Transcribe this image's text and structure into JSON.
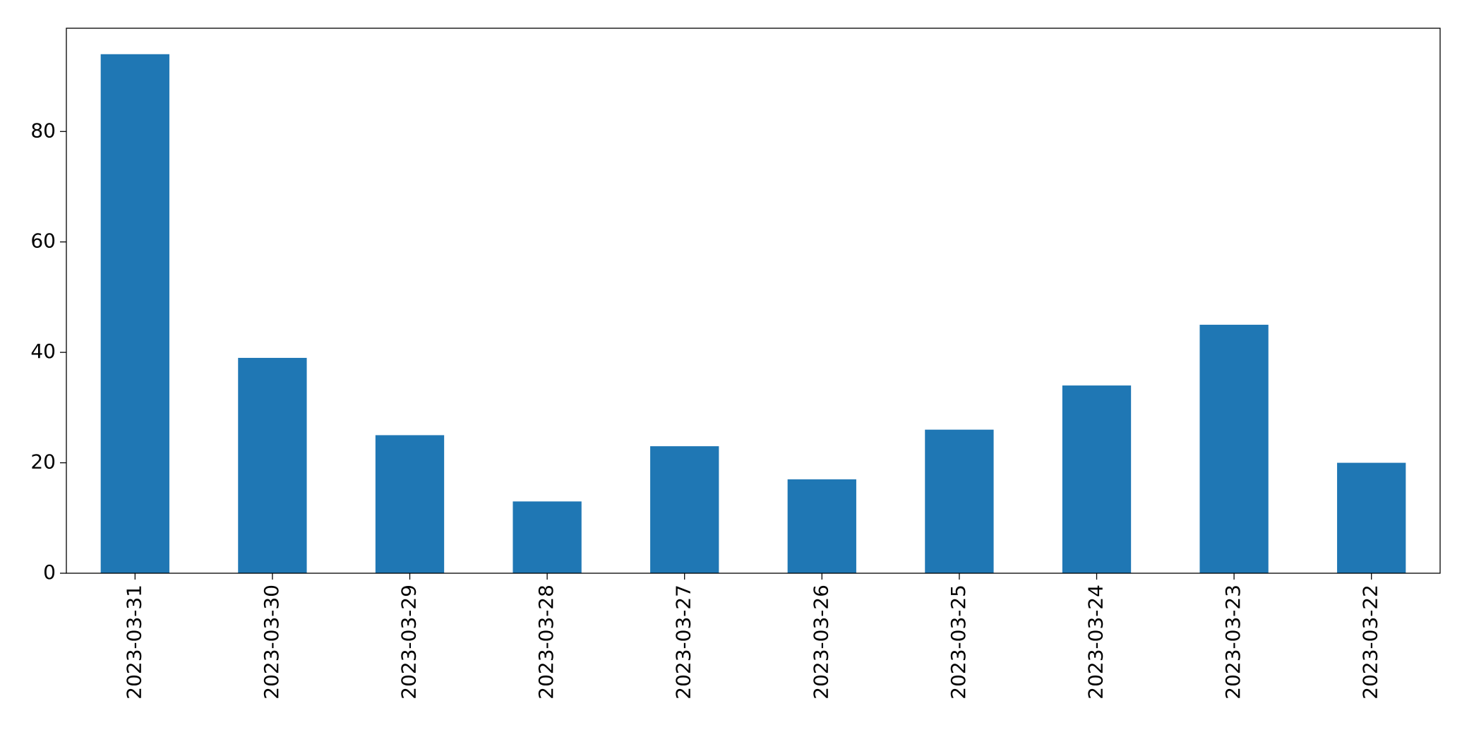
{
  "chart_data": {
    "type": "bar",
    "categories": [
      "2023-03-31",
      "2023-03-30",
      "2023-03-29",
      "2023-03-28",
      "2023-03-27",
      "2023-03-26",
      "2023-03-25",
      "2023-03-24",
      "2023-03-23",
      "2023-03-22"
    ],
    "values": [
      94,
      39,
      25,
      13,
      23,
      17,
      26,
      34,
      45,
      20
    ],
    "color": "#1f77b4",
    "ylim": [
      0,
      98.7
    ],
    "yticks": [
      0,
      20,
      40,
      60,
      80
    ],
    "grid": false
  }
}
